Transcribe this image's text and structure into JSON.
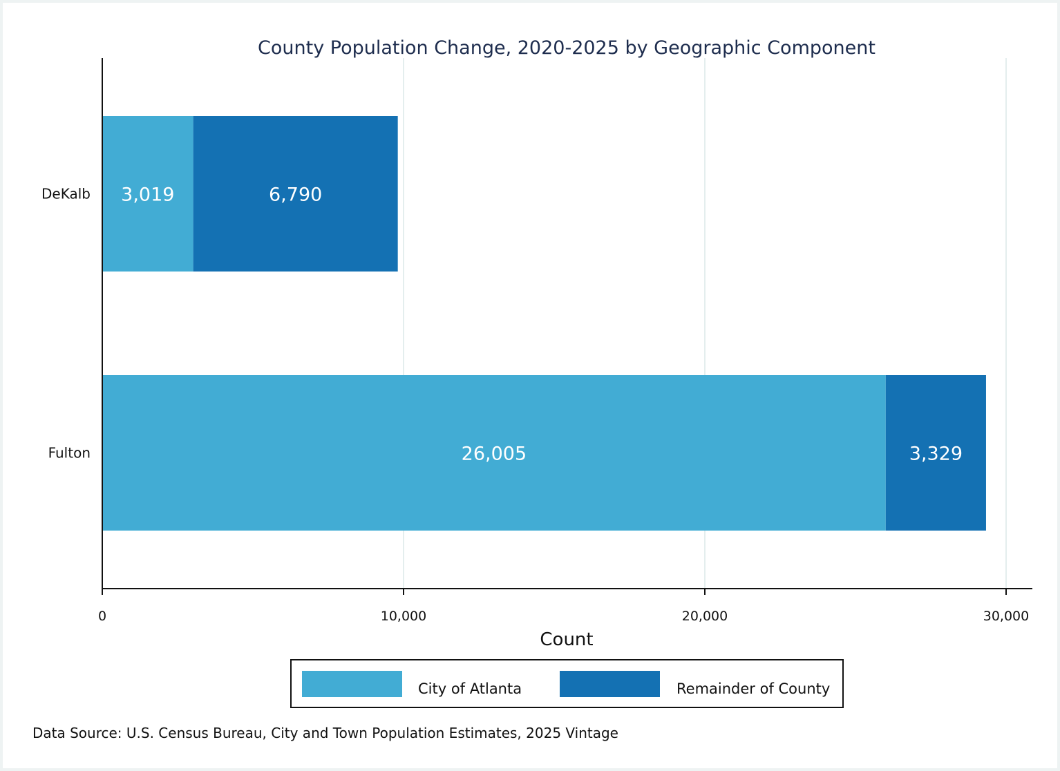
{
  "chart_data": {
    "type": "bar",
    "orientation": "horizontal",
    "stacked": true,
    "title": "County Population Change, 2020-2025 by Geographic Component",
    "xlabel": "Count",
    "ylabel": "",
    "categories": [
      "DeKalb",
      "Fulton"
    ],
    "series": [
      {
        "name": "City of Atlanta",
        "values": [
          3019,
          26005
        ],
        "labels": [
          "3,019",
          "26,005"
        ],
        "color": "#42acd4"
      },
      {
        "name": "Remainder of County",
        "values": [
          6790,
          3329
        ],
        "labels": [
          "6,790",
          "3,329"
        ],
        "color": "#1471b3"
      }
    ],
    "xlim": [
      0,
      31000
    ],
    "xticks": [
      0,
      10000,
      20000,
      30000
    ],
    "xtick_labels": [
      "0",
      "10,000",
      "20,000",
      "30,000"
    ],
    "grid": "vertical",
    "grid_color": "#e4eeee",
    "legend_position": "bottom"
  },
  "source_note": "Data Source: U.S. Census Bureau, City and Town Population Estimates, 2025 Vintage"
}
